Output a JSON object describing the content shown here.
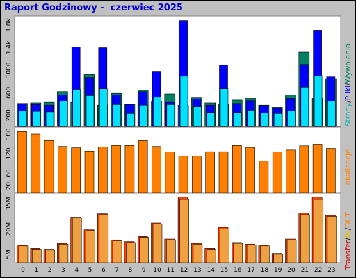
{
  "title": "Raport Godzinowy -  czerwiec 2025",
  "colors": {
    "background": "#c0c0c0",
    "plot_bg": "#ffffff",
    "pages": "#008060",
    "files": "#0000ff",
    "hits": "#00e0ff",
    "visits": "#ff8000",
    "transfer": "#ff4000",
    "transfer_light": "#f0a040",
    "text_title": "#0000cc"
  },
  "panel_labels": {
    "top": [
      "Strony",
      "/",
      "Pliki",
      "/",
      "Wywolania"
    ],
    "middle": "Lokalizacje",
    "bottom": [
      "Transfer",
      "/",
      "IN",
      "/",
      "OUT"
    ]
  },
  "chart_data": [
    {
      "type": "bar",
      "name": "pages-files-hits",
      "categories": [
        "0",
        "1",
        "2",
        "3",
        "4",
        "5",
        "6",
        "7",
        "8",
        "9",
        "10",
        "11",
        "12",
        "13",
        "14",
        "15",
        "16",
        "17",
        "18",
        "19",
        "20",
        "21",
        "22",
        "23"
      ],
      "ylim": [
        0,
        1900
      ],
      "ytick_labels": [
        "200",
        "600",
        "1000",
        "1.4k",
        "1.8k"
      ],
      "yticks": [
        200,
        600,
        1000,
        1400,
        1800
      ],
      "series": [
        {
          "name": "Strony",
          "values": [
            410,
            420,
            430,
            620,
            430,
            920,
            380,
            590,
            400,
            650,
            450,
            580,
            380,
            510,
            420,
            400,
            470,
            500,
            380,
            340,
            560,
            1320,
            500,
            850
          ]
        },
        {
          "name": "Pliki",
          "values": [
            400,
            390,
            380,
            560,
            1410,
            870,
            1400,
            560,
            390,
            620,
            980,
            430,
            1880,
            490,
            380,
            1090,
            410,
            460,
            370,
            320,
            500,
            1100,
            1710,
            880
          ]
        },
        {
          "name": "Wywolania",
          "values": [
            280,
            270,
            260,
            450,
            660,
            550,
            670,
            390,
            230,
            380,
            520,
            390,
            890,
            350,
            250,
            670,
            250,
            290,
            240,
            230,
            280,
            700,
            900,
            450
          ]
        }
      ]
    },
    {
      "type": "bar",
      "name": "visits",
      "categories": [
        "0",
        "1",
        "2",
        "3",
        "4",
        "5",
        "6",
        "7",
        "8",
        "9",
        "10",
        "11",
        "12",
        "13",
        "14",
        "15",
        "16",
        "17",
        "18",
        "19",
        "20",
        "21",
        "22",
        "23"
      ],
      "ylim": [
        0,
        195
      ],
      "ytick_labels": [
        "20",
        "60",
        "120",
        "180"
      ],
      "yticks": [
        20,
        60,
        120,
        180
      ],
      "series": [
        {
          "name": "Lokalizacje",
          "values": [
            188,
            180,
            160,
            142,
            138,
            128,
            140,
            145,
            145,
            160,
            142,
            125,
            112,
            112,
            126,
            126,
            145,
            139,
            98,
            125,
            131,
            144,
            149,
            136
          ]
        }
      ]
    },
    {
      "type": "bar",
      "name": "transfer",
      "categories": [
        "0",
        "1",
        "2",
        "3",
        "4",
        "5",
        "6",
        "7",
        "8",
        "9",
        "10",
        "11",
        "12",
        "13",
        "14",
        "15",
        "16",
        "17",
        "18",
        "19",
        "20",
        "21",
        "22",
        "23"
      ],
      "ylim": [
        0,
        40
      ],
      "ytick_labels": [
        "5M",
        "20M",
        "35M"
      ],
      "yticks": [
        5,
        20,
        35
      ],
      "series": [
        {
          "name": "IN",
          "values": [
            10.5,
            8.5,
            8.0,
            11.5,
            27.0,
            19.5,
            29.0,
            13.5,
            12.5,
            15.5,
            23.5,
            14.0,
            39.0,
            11.5,
            8.5,
            21.0,
            12.0,
            11.0,
            10.5,
            5.5,
            14.0,
            29.5,
            39.0,
            28.0
          ]
        },
        {
          "name": "OUT",
          "values": [
            10.0,
            8.0,
            7.5,
            11.0,
            26.5,
            19.0,
            28.5,
            13.0,
            12.0,
            15.0,
            23.0,
            13.5,
            37.5,
            11.0,
            8.0,
            20.0,
            11.5,
            10.5,
            10.0,
            5.0,
            13.5,
            28.5,
            37.5,
            27.5
          ]
        }
      ]
    }
  ]
}
